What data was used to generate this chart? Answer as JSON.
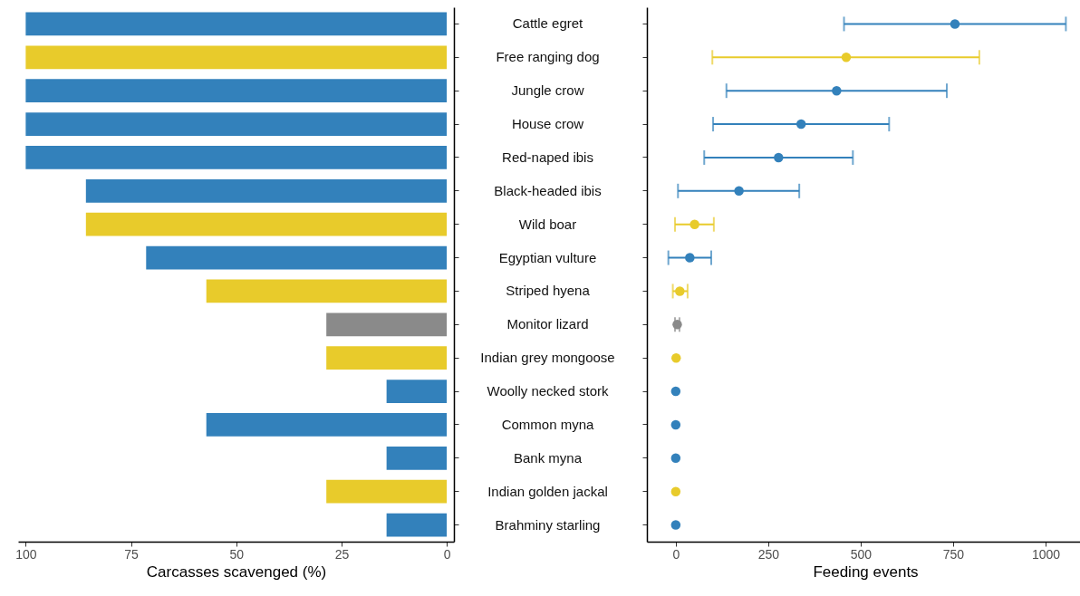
{
  "chart_data": [
    {
      "type": "bar",
      "orientation": "horizontal",
      "xlabel": "Carcasses scavenged (%)",
      "categories": [
        null,
        null,
        null,
        null,
        null,
        null,
        null,
        null,
        null,
        null,
        null,
        null,
        null,
        null,
        null,
        null
      ],
      "values": [
        100,
        100,
        100,
        100,
        100,
        85.7,
        85.7,
        71.4,
        57.1,
        28.6,
        28.6,
        14.3,
        57.1,
        14.3,
        28.6,
        14.3
      ],
      "colors": [
        "#3381bb",
        "#e8cb2b",
        "#3381bb",
        "#3381bb",
        "#3381bb",
        "#3381bb",
        "#e8cb2b",
        "#3381bb",
        "#e8cb2b",
        "#8a8a8a",
        "#e8cb2b",
        "#3381bb",
        "#3381bb",
        "#3381bb",
        "#e8cb2b",
        "#3381bb"
      ],
      "xlim": [
        101.8,
        -1.7
      ],
      "xticks": [
        100,
        75,
        50,
        25,
        0
      ],
      "tick_labels": "x"
    },
    {
      "type": "scatter",
      "orientation": "horizontal",
      "xlabel": "Feeding events",
      "marker": "circle",
      "categories": [
        "Cattle egret",
        "Free ranging dog",
        "Jungle crow",
        "House crow",
        "Red-naped ibis",
        "Black-headed ibis",
        "Wild boar",
        "Egyptian vulture",
        "Striped hyena",
        "Monitor lizard",
        "Indian grey mongoose",
        "Woolly necked stork",
        "Common myna",
        "Bank myna",
        "Indian golden jackal",
        "Brahminy starling"
      ],
      "values": [
        755,
        461,
        435,
        339,
        278,
        171,
        51,
        38,
        11,
        4,
        1,
        0,
        0,
        0,
        0,
        0
      ],
      "errors": [
        [
          455,
          1055
        ],
        [
          99,
          821
        ],
        [
          137,
          733
        ],
        [
          101,
          577
        ],
        [
          77,
          479
        ],
        [
          6,
          334
        ],
        [
          -2,
          103
        ],
        [
          -20,
          96
        ],
        [
          -8,
          32
        ],
        [
          -2,
          10
        ],
        null,
        null,
        null,
        null,
        null,
        null
      ],
      "colors": [
        "#3381bb",
        "#e8cb2b",
        "#3381bb",
        "#3381bb",
        "#3381bb",
        "#3381bb",
        "#e8cb2b",
        "#3381bb",
        "#e8cb2b",
        "#8a8a8a",
        "#e8cb2b",
        "#3381bb",
        "#3381bb",
        "#3381bb",
        "#e8cb2b",
        "#3381bb"
      ],
      "xlim": [
        -78,
        1103
      ],
      "xticks": [
        0,
        250,
        500,
        750,
        1000
      ]
    }
  ]
}
